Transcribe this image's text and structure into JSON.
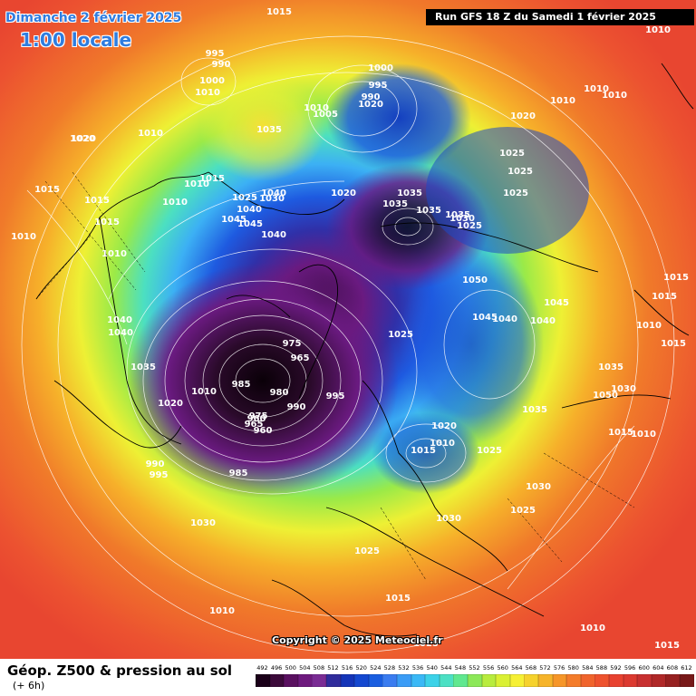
{
  "header": {
    "date": "Dimanche 2 février 2025",
    "local_time": "1:00 locale",
    "run": "Run GFS 18 Z du Samedi 1 février 2025"
  },
  "footer": {
    "product": "Géop. Z500 & pression au sol",
    "lead": "(+ 6h)",
    "copyright": "Copyright © 2025 Meteociel.fr"
  },
  "scale": {
    "values": [
      "492",
      "496",
      "500",
      "504",
      "508",
      "512",
      "516",
      "520",
      "524",
      "528",
      "532",
      "536",
      "540",
      "544",
      "548",
      "552",
      "556",
      "560",
      "564",
      "568",
      "572",
      "576",
      "580",
      "584",
      "588",
      "592",
      "596",
      "600",
      "604",
      "608",
      "612"
    ],
    "colors": [
      "#1a0018",
      "#3c0a3a",
      "#5a1060",
      "#6e1a7e",
      "#7a2c94",
      "#302c9c",
      "#1434b8",
      "#1448d0",
      "#1a5ee0",
      "#3a7cf0",
      "#3a9cf6",
      "#3ab8f6",
      "#3cd2e8",
      "#4ce0c4",
      "#60e890",
      "#8ce858",
      "#b8ec3e",
      "#daf034",
      "#f6f034",
      "#f6d22c",
      "#f6b42a",
      "#f69628",
      "#f47c2a",
      "#f0642c",
      "#ee522e",
      "#e84230",
      "#dc3a30",
      "#c83030",
      "#b02828",
      "#962020",
      "#781818"
    ]
  },
  "map": {
    "isobar_labels": [
      "1015",
      "1020",
      "995",
      "990",
      "1000",
      "1010",
      "1000",
      "995",
      "990",
      "1010",
      "1005",
      "1020",
      "1010",
      "1035",
      "1020",
      "1010",
      "1015",
      "1015",
      "1015",
      "1010",
      "1010",
      "1015",
      "1010",
      "1025",
      "1040",
      "1045",
      "1040",
      "1040",
      "1030",
      "1010",
      "1020",
      "1035",
      "1035",
      "1035",
      "1025",
      "1020",
      "1025",
      "1025",
      "1010",
      "1010",
      "1010",
      "1025",
      "1030",
      "1035",
      "975",
      "965",
      "960",
      "980",
      "985",
      "1010",
      "1020",
      "990",
      "975",
      "965",
      "960",
      "995",
      "990",
      "995",
      "985",
      "1050",
      "1045",
      "1040",
      "1040",
      "1045",
      "1035",
      "1030",
      "1025",
      "1015",
      "1010",
      "1035",
      "1040",
      "1040",
      "1045",
      "1035",
      "1050",
      "1020",
      "1015",
      "1010",
      "1025",
      "1030",
      "1025",
      "1030",
      "1025",
      "1015",
      "1010",
      "1015",
      "1030",
      "1010",
      "1025",
      "1015",
      "1010",
      "1015",
      "1015"
    ]
  }
}
